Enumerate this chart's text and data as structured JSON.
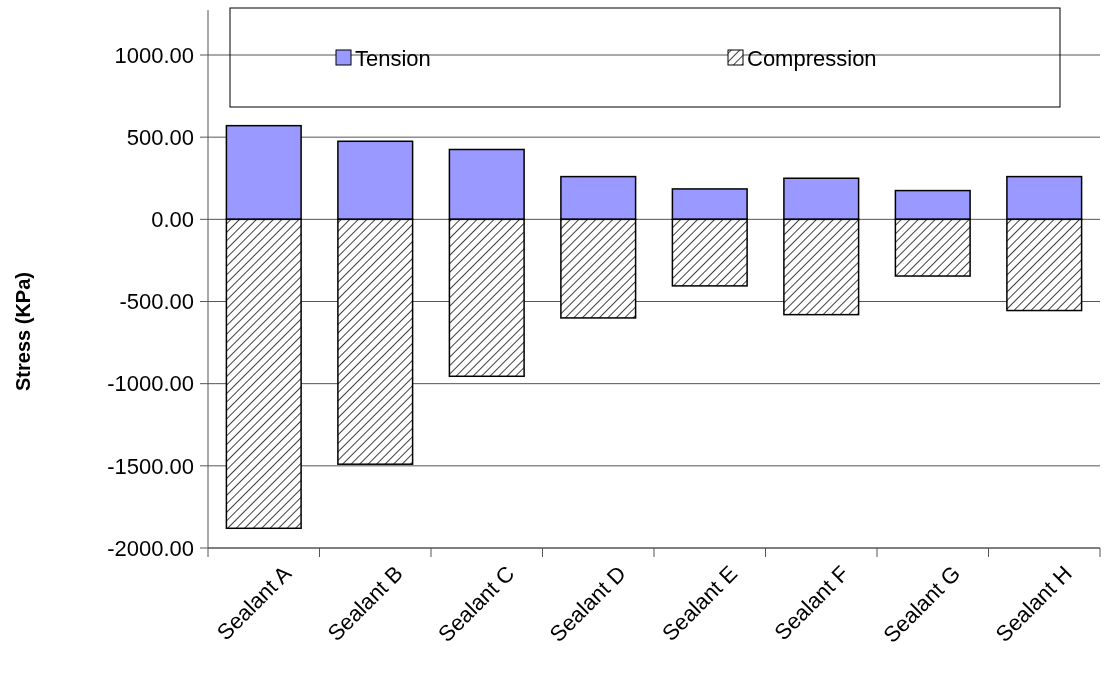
{
  "chart_data": {
    "type": "bar",
    "ylabel": "Stress (KPa)",
    "categories": [
      "Sealant A",
      "Sealant B",
      "Sealant C",
      "Sealant D",
      "Sealant E",
      "Sealant F",
      "Sealant G",
      "Sealant H"
    ],
    "series": [
      {
        "name": "Tension",
        "color": "#9999ff",
        "values": [
          570,
          475,
          425,
          260,
          185,
          250,
          175,
          260
        ]
      },
      {
        "name": "Compression",
        "color": "#000000",
        "values": [
          -1880,
          -1490,
          -955,
          -600,
          -405,
          -580,
          -345,
          -555
        ]
      }
    ],
    "stacked": true,
    "ylim": [
      -2000,
      1000
    ],
    "yticks": [
      {
        "value": 1000,
        "label": "1000.00"
      },
      {
        "value": 500,
        "label": "500.00"
      },
      {
        "value": 0,
        "label": "0.00"
      },
      {
        "value": -500,
        "label": "-500.00"
      },
      {
        "value": -1000,
        "label": "-1000.00"
      },
      {
        "value": -1500,
        "label": "-1500.00"
      },
      {
        "value": -2000,
        "label": "-2000.00"
      }
    ],
    "grid": "y",
    "legend": "top"
  }
}
